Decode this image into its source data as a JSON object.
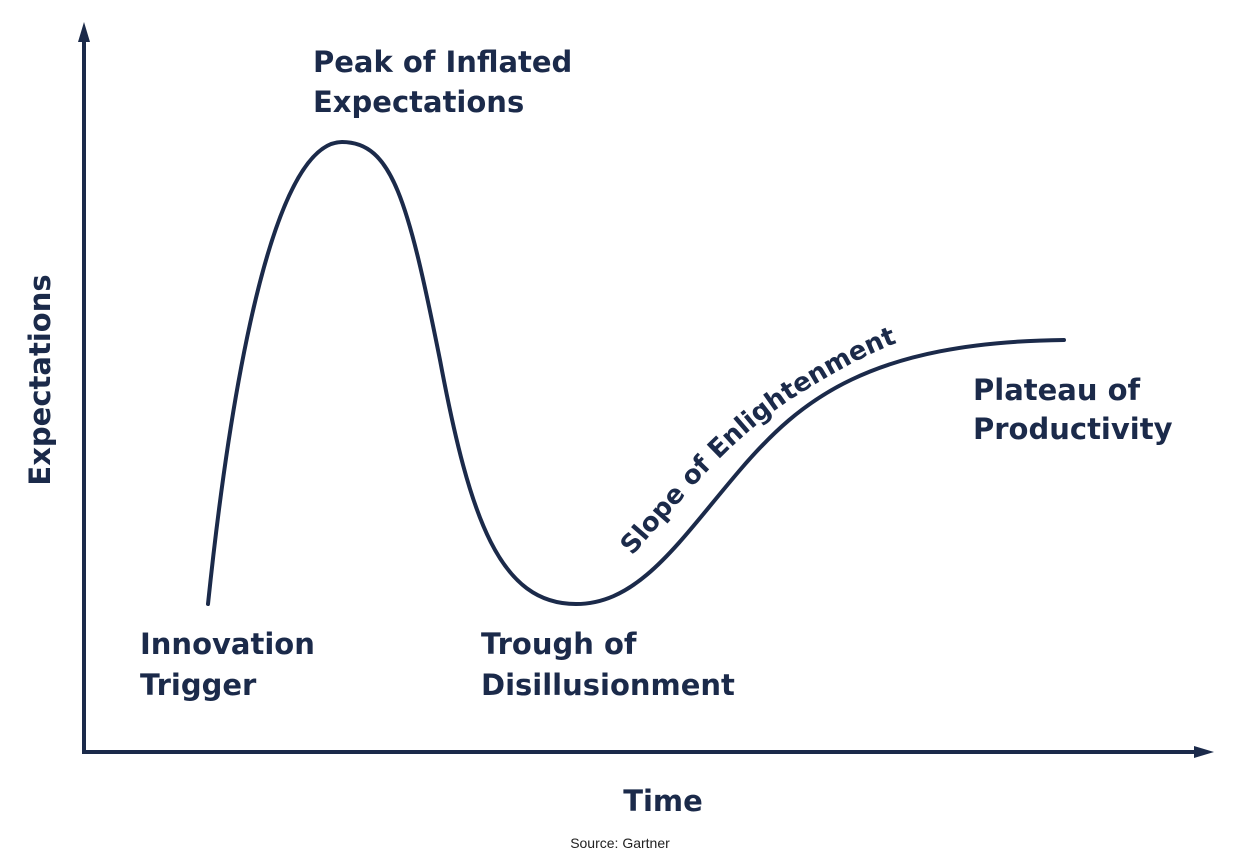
{
  "axes": {
    "y_label": "Expectations",
    "x_label": "Time"
  },
  "phases": {
    "innovation_trigger": [
      "Innovation",
      "Trigger"
    ],
    "peak": [
      "Peak of Inflated",
      "Expectations"
    ],
    "trough": [
      "Trough of",
      "Disillusionment"
    ],
    "slope": "Slope of Enlightenment",
    "plateau": [
      "Plateau of",
      "Productivity"
    ]
  },
  "source": "Source: Gartner",
  "colors": {
    "primary": "#1b2a4a"
  }
}
